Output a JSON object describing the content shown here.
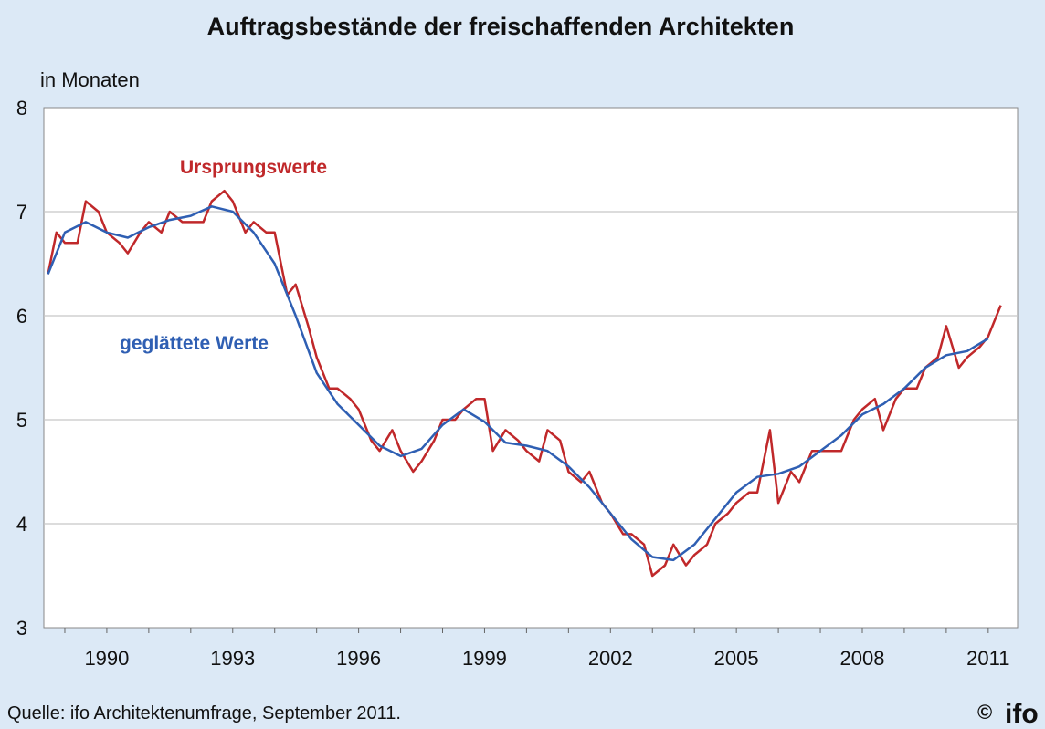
{
  "chart_data": {
    "type": "line",
    "title": "Auftragsbestände der freischaffenden Architekten",
    "ylabel": "in Monaten",
    "xlabel": "",
    "ylim": [
      3,
      8
    ],
    "xlim": [
      1988.5,
      2011.7
    ],
    "yticks": [
      3,
      4,
      5,
      6,
      7,
      8
    ],
    "xticks": [
      "1990",
      "1993",
      "1996",
      "1999",
      "2002",
      "2005",
      "2008",
      "2011"
    ],
    "grid": true,
    "legend": "inline labels",
    "series": [
      {
        "name": "Ursprungswerte",
        "color": "#c0282a",
        "points": [
          [
            1988.6,
            6.4
          ],
          [
            1988.8,
            6.8
          ],
          [
            1989.0,
            6.7
          ],
          [
            1989.3,
            6.7
          ],
          [
            1989.5,
            7.1
          ],
          [
            1989.8,
            7.0
          ],
          [
            1990.0,
            6.8
          ],
          [
            1990.3,
            6.7
          ],
          [
            1990.5,
            6.6
          ],
          [
            1990.8,
            6.8
          ],
          [
            1991.0,
            6.9
          ],
          [
            1991.3,
            6.8
          ],
          [
            1991.5,
            7.0
          ],
          [
            1991.8,
            6.9
          ],
          [
            1992.0,
            6.9
          ],
          [
            1992.3,
            6.9
          ],
          [
            1992.5,
            7.1
          ],
          [
            1992.8,
            7.2
          ],
          [
            1993.0,
            7.1
          ],
          [
            1993.3,
            6.8
          ],
          [
            1993.5,
            6.9
          ],
          [
            1993.8,
            6.8
          ],
          [
            1994.0,
            6.8
          ],
          [
            1994.3,
            6.2
          ],
          [
            1994.5,
            6.3
          ],
          [
            1994.8,
            5.9
          ],
          [
            1995.0,
            5.6
          ],
          [
            1995.3,
            5.3
          ],
          [
            1995.5,
            5.3
          ],
          [
            1995.8,
            5.2
          ],
          [
            1996.0,
            5.1
          ],
          [
            1996.3,
            4.8
          ],
          [
            1996.5,
            4.7
          ],
          [
            1996.8,
            4.9
          ],
          [
            1997.0,
            4.7
          ],
          [
            1997.3,
            4.5
          ],
          [
            1997.5,
            4.6
          ],
          [
            1997.8,
            4.8
          ],
          [
            1998.0,
            5.0
          ],
          [
            1998.3,
            5.0
          ],
          [
            1998.5,
            5.1
          ],
          [
            1998.8,
            5.2
          ],
          [
            1999.0,
            5.2
          ],
          [
            1999.2,
            4.7
          ],
          [
            1999.5,
            4.9
          ],
          [
            1999.8,
            4.8
          ],
          [
            2000.0,
            4.7
          ],
          [
            2000.3,
            4.6
          ],
          [
            2000.5,
            4.9
          ],
          [
            2000.8,
            4.8
          ],
          [
            2001.0,
            4.5
          ],
          [
            2001.3,
            4.4
          ],
          [
            2001.5,
            4.5
          ],
          [
            2001.8,
            4.2
          ],
          [
            2002.0,
            4.1
          ],
          [
            2002.3,
            3.9
          ],
          [
            2002.5,
            3.9
          ],
          [
            2002.8,
            3.8
          ],
          [
            2003.0,
            3.5
          ],
          [
            2003.3,
            3.6
          ],
          [
            2003.5,
            3.8
          ],
          [
            2003.8,
            3.6
          ],
          [
            2004.0,
            3.7
          ],
          [
            2004.3,
            3.8
          ],
          [
            2004.5,
            4.0
          ],
          [
            2004.8,
            4.1
          ],
          [
            2005.0,
            4.2
          ],
          [
            2005.3,
            4.3
          ],
          [
            2005.5,
            4.3
          ],
          [
            2005.8,
            4.9
          ],
          [
            2006.0,
            4.2
          ],
          [
            2006.3,
            4.5
          ],
          [
            2006.5,
            4.4
          ],
          [
            2006.8,
            4.7
          ],
          [
            2007.0,
            4.7
          ],
          [
            2007.3,
            4.7
          ],
          [
            2007.5,
            4.7
          ],
          [
            2007.8,
            5.0
          ],
          [
            2008.0,
            5.1
          ],
          [
            2008.3,
            5.2
          ],
          [
            2008.5,
            4.9
          ],
          [
            2008.8,
            5.2
          ],
          [
            2009.0,
            5.3
          ],
          [
            2009.3,
            5.3
          ],
          [
            2009.5,
            5.5
          ],
          [
            2009.8,
            5.6
          ],
          [
            2010.0,
            5.9
          ],
          [
            2010.3,
            5.5
          ],
          [
            2010.5,
            5.6
          ],
          [
            2010.8,
            5.7
          ],
          [
            2011.0,
            5.8
          ],
          [
            2011.3,
            6.1
          ]
        ]
      },
      {
        "name": "geglättete Werte",
        "color": "#2f5fb3",
        "points": [
          [
            1988.6,
            6.4
          ],
          [
            1989.0,
            6.8
          ],
          [
            1989.5,
            6.9
          ],
          [
            1990.0,
            6.8
          ],
          [
            1990.5,
            6.75
          ],
          [
            1991.0,
            6.85
          ],
          [
            1991.5,
            6.92
          ],
          [
            1992.0,
            6.96
          ],
          [
            1992.5,
            7.05
          ],
          [
            1993.0,
            7.0
          ],
          [
            1993.5,
            6.8
          ],
          [
            1994.0,
            6.5
          ],
          [
            1994.5,
            6.0
          ],
          [
            1995.0,
            5.45
          ],
          [
            1995.5,
            5.15
          ],
          [
            1996.0,
            4.95
          ],
          [
            1996.5,
            4.75
          ],
          [
            1997.0,
            4.65
          ],
          [
            1997.5,
            4.72
          ],
          [
            1998.0,
            4.95
          ],
          [
            1998.5,
            5.1
          ],
          [
            1999.0,
            4.98
          ],
          [
            1999.5,
            4.78
          ],
          [
            2000.0,
            4.75
          ],
          [
            2000.5,
            4.7
          ],
          [
            2001.0,
            4.55
          ],
          [
            2001.5,
            4.35
          ],
          [
            2002.0,
            4.1
          ],
          [
            2002.5,
            3.85
          ],
          [
            2003.0,
            3.68
          ],
          [
            2003.5,
            3.65
          ],
          [
            2004.0,
            3.8
          ],
          [
            2004.5,
            4.05
          ],
          [
            2005.0,
            4.3
          ],
          [
            2005.5,
            4.45
          ],
          [
            2006.0,
            4.48
          ],
          [
            2006.5,
            4.55
          ],
          [
            2007.0,
            4.7
          ],
          [
            2007.5,
            4.85
          ],
          [
            2008.0,
            5.05
          ],
          [
            2008.5,
            5.15
          ],
          [
            2009.0,
            5.3
          ],
          [
            2009.5,
            5.5
          ],
          [
            2010.0,
            5.62
          ],
          [
            2010.5,
            5.66
          ],
          [
            2011.0,
            5.78
          ]
        ]
      }
    ],
    "annotations": [
      {
        "text": "Ursprungswerte",
        "series": 0
      },
      {
        "text": "geglättete Werte",
        "series": 1
      }
    ]
  },
  "footer": {
    "source": "Quelle: ifo Architektenumfrage, September 2011.",
    "copyright": "©",
    "logo": "ifo"
  },
  "colors": {
    "background": "#dce9f6",
    "plot_background": "#ffffff",
    "grid": "#c8c8c8"
  }
}
